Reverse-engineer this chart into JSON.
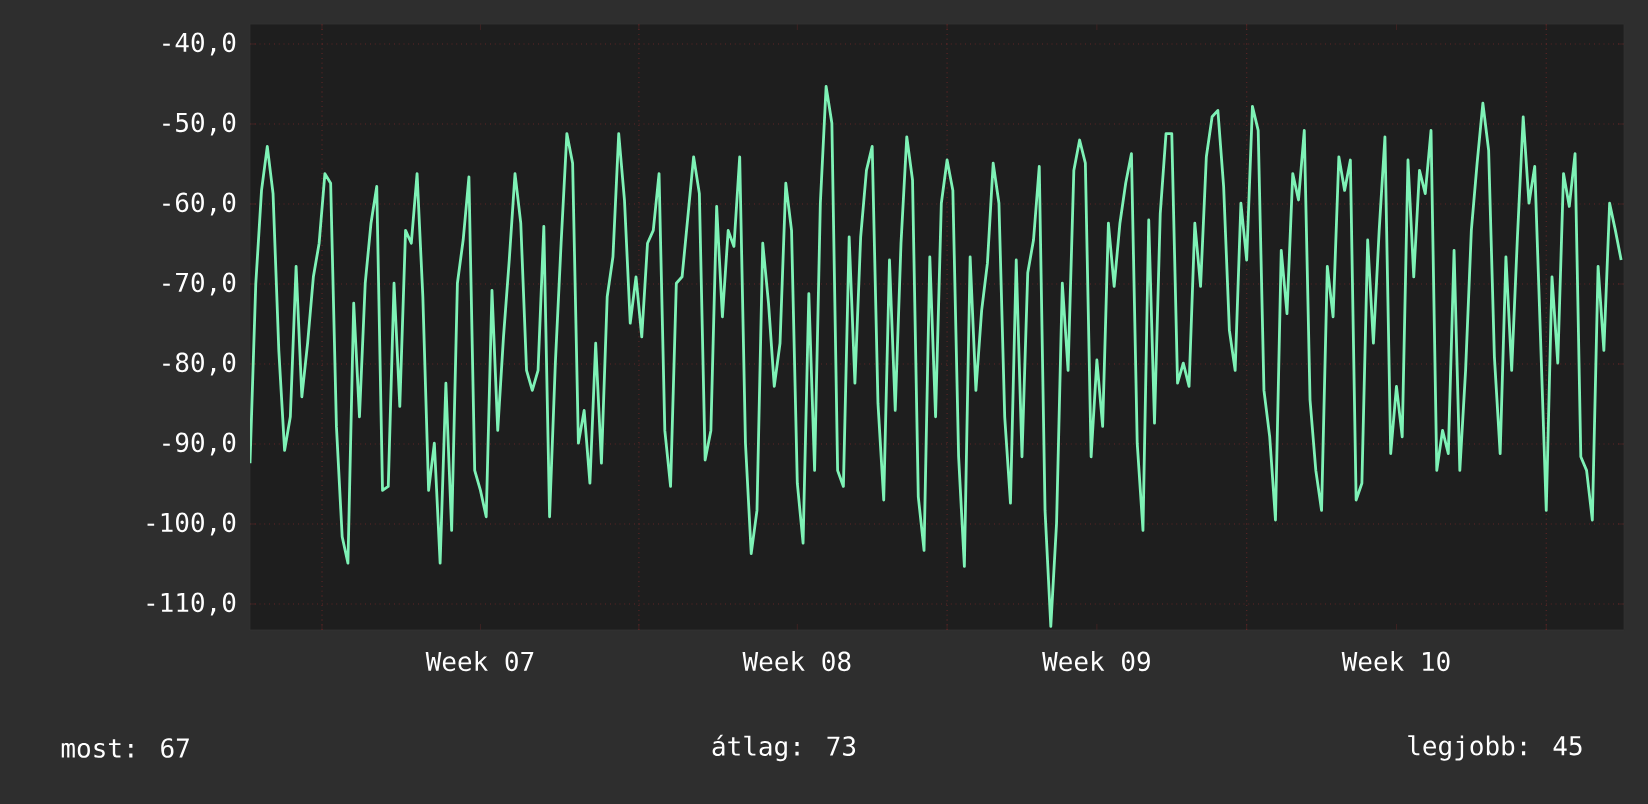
{
  "chart_data": {
    "type": "line",
    "categories": [
      null,
      null,
      null,
      null,
      null,
      null,
      null,
      null,
      null,
      null,
      null,
      null,
      null,
      null,
      null,
      null,
      null,
      null,
      null,
      null,
      null,
      null,
      null,
      null,
      null,
      null,
      null,
      null,
      null,
      null,
      null,
      null,
      null,
      null,
      null,
      null,
      null,
      null,
      null,
      null,
      "Week 07",
      null,
      null,
      null,
      null,
      null,
      null,
      null,
      null,
      null,
      null,
      null,
      null,
      null,
      null,
      null,
      null,
      null,
      null,
      null,
      null,
      null,
      null,
      null,
      null,
      null,
      null,
      null,
      null,
      null,
      null,
      null,
      null,
      null,
      null,
      null,
      null,
      null,
      null,
      null,
      null,
      null,
      null,
      null,
      null,
      null,
      null,
      null,
      null,
      null,
      null,
      null,
      null,
      null,
      null,
      "Week 08",
      null,
      null,
      null,
      null,
      null,
      null,
      null,
      null,
      null,
      null,
      null,
      null,
      null,
      null,
      null,
      null,
      null,
      null,
      null,
      null,
      null,
      null,
      null,
      null,
      null,
      null,
      null,
      null,
      null,
      null,
      null,
      null,
      null,
      null,
      null,
      null,
      null,
      null,
      null,
      null,
      null,
      null,
      null,
      null,
      null,
      null,
      null,
      null,
      null,
      null,
      null,
      "Week 09",
      null,
      null,
      null,
      null,
      null,
      null,
      null,
      null,
      null,
      null,
      null,
      null,
      null,
      null,
      null,
      null,
      null,
      null,
      null,
      null,
      null,
      null,
      null,
      null,
      null,
      null,
      null,
      null,
      null,
      null,
      null,
      null,
      null,
      null,
      null,
      null,
      null,
      null,
      null,
      null,
      null,
      null,
      null,
      null,
      null,
      null,
      null,
      null,
      null,
      null,
      null,
      "Week 10",
      null,
      null,
      null,
      null,
      null,
      null,
      null,
      null,
      null,
      null,
      null,
      null,
      null,
      null,
      null,
      null,
      null,
      null,
      null,
      null,
      null,
      null,
      null,
      null,
      null,
      null,
      null,
      null,
      null,
      null,
      null,
      null,
      null,
      null,
      null,
      null,
      null,
      null,
      null
    ],
    "values": [
      -92.4,
      -70,
      -58.3,
      -52.8,
      -58.7,
      -78.3,
      -90.8,
      -86.6,
      -67.8,
      -84.1,
      -77.4,
      -69.1,
      -64.9,
      -56.2,
      -57.4,
      -87.8,
      -101.6,
      -104.9,
      -72.4,
      -86.6,
      -69.9,
      -62.4,
      -57.8,
      -95.8,
      -95.3,
      -69.9,
      -85.3,
      -63.3,
      -64.9,
      -56.2,
      -71.6,
      -95.8,
      -89.9,
      -104.9,
      -82.4,
      -100.8,
      -69.9,
      -64.5,
      -56.6,
      -93.3,
      -95.8,
      -99.1,
      -70.8,
      -88.3,
      -76.6,
      -67,
      -56.2,
      -62.4,
      -80.8,
      -83.3,
      -80.8,
      -62.8,
      -99.1,
      -79.9,
      -64.9,
      -51.2,
      -54.9,
      -89.9,
      -85.8,
      -94.9,
      -77.4,
      -92.4,
      -71.6,
      -66.6,
      -51.2,
      -59.5,
      -74.9,
      -69.1,
      -76.6,
      -64.9,
      -63.3,
      -56.2,
      -88.3,
      -95.3,
      -69.9,
      -69.1,
      -61.6,
      -54.1,
      -58.7,
      -92,
      -88.3,
      -60.3,
      -74.1,
      -63.3,
      -65.3,
      -54.1,
      -89.9,
      -103.7,
      -98.3,
      -64.9,
      -72.4,
      -82.8,
      -77.4,
      -57.4,
      -63.3,
      -94.9,
      -102.4,
      -71.2,
      -93.3,
      -59.9,
      -45.3,
      -49.9,
      -93.3,
      -95.3,
      -64.1,
      -82.4,
      -64.1,
      -55.8,
      -52.8,
      -84.9,
      -97,
      -67,
      -85.8,
      -64.9,
      -51.6,
      -57,
      -96.6,
      -103.3,
      -66.6,
      -86.6,
      -59.9,
      -54.5,
      -58.3,
      -91.6,
      -105.3,
      -66.6,
      -83.3,
      -73.3,
      -67.4,
      -54.9,
      -59.9,
      -86.6,
      -97.4,
      -67,
      -91.6,
      -68.6,
      -64.5,
      -55.3,
      -98.3,
      -112.8,
      -99.9,
      -69.9,
      -80.8,
      -55.8,
      -52,
      -54.9,
      -91.6,
      -79.5,
      -87.8,
      -62.4,
      -70.3,
      -62.4,
      -57.4,
      -53.7,
      -89.9,
      -100.8,
      -62,
      -87.4,
      -61.2,
      -51.2,
      -51.2,
      -82.4,
      -79.9,
      -82.8,
      -62.4,
      -70.3,
      -54.1,
      -49.1,
      -48.3,
      -57.8,
      -75.8,
      -80.8,
      -59.9,
      -67,
      -47.8,
      -50.8,
      -83.3,
      -89.1,
      -99.5,
      -65.8,
      -73.7,
      -56.2,
      -59.5,
      -50.8,
      -84.5,
      -93.3,
      -98.3,
      -67.8,
      -74.1,
      -54.1,
      -58.3,
      -54.5,
      -97,
      -94.9,
      -64.5,
      -77.4,
      -63.3,
      -51.6,
      -91.2,
      -82.8,
      -89.1,
      -54.5,
      -69.1,
      -55.8,
      -58.7,
      -50.8,
      -93.3,
      -88.3,
      -91.2,
      -65.8,
      -93.3,
      -80.8,
      -63.3,
      -54.9,
      -47.4,
      -53.3,
      -79.1,
      -91.2,
      -66.6,
      -80.8,
      -64.1,
      -49.1,
      -59.9,
      -55.3,
      -76.6,
      -98.3,
      -69.1,
      -79.9,
      -56.2,
      -60.3,
      -53.7,
      -91.6,
      -93.3,
      -99.5,
      -67.8,
      -78.3,
      -59.9,
      -63.3,
      -67
    ],
    "color": "#7ef2b6",
    "ylim": [
      -113.25,
      -37.5
    ],
    "yticks": [
      {
        "value": -40,
        "label": "-40,0"
      },
      {
        "value": -50,
        "label": "-50,0"
      },
      {
        "value": -60,
        "label": "-60,0"
      },
      {
        "value": -70,
        "label": "-70,0"
      },
      {
        "value": -80,
        "label": "-80,0"
      },
      {
        "value": -90,
        "label": "-90,0"
      },
      {
        "value": -100,
        "label": "-100,0"
      },
      {
        "value": -110,
        "label": "-110,0"
      }
    ],
    "grid": true,
    "marker": "none",
    "line_style": "solid",
    "annotations": [
      "most: 67",
      "átlag: 73",
      "legjobb: 45"
    ]
  }
}
